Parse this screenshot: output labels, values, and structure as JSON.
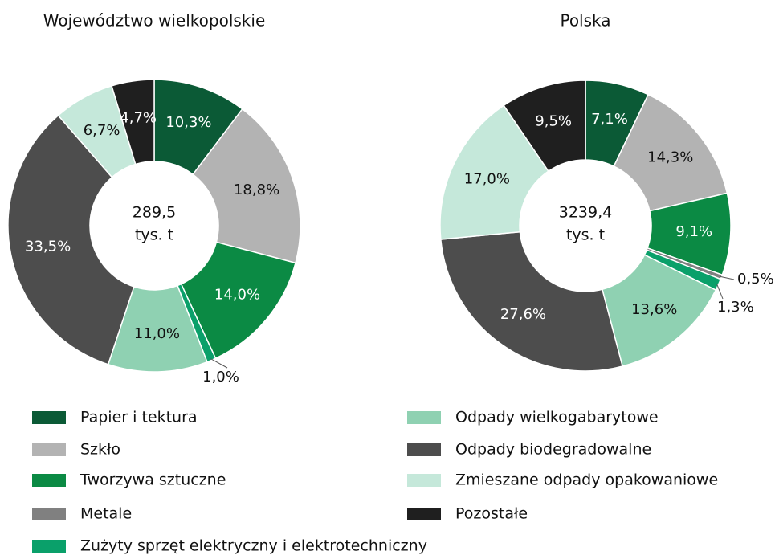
{
  "legend": {
    "categories": [
      "Papier i tektura",
      "Szkło",
      "Tworzywa sztuczne",
      "Metale",
      "Zużyty sprzęt elektryczny i elektrotechniczny",
      "Odpady wielkogabarytowe",
      "Odpady biodegradowalne",
      "Zmieszane odpady opakowaniowe",
      "Pozostałe"
    ],
    "colors": [
      "#0b5a36",
      "#b3b3b3",
      "#0b8a44",
      "#808080",
      "#0aa06a",
      "#8fd1b2",
      "#4d4d4d",
      "#c5e8da",
      "#1f1f1f"
    ]
  },
  "chart_data": [
    {
      "type": "pie",
      "title": "Województwo wielkopolskie",
      "center_value": "289,5",
      "center_unit": "tys. t",
      "values": [
        10.3,
        18.8,
        14.0,
        null,
        1.0,
        11.0,
        33.5,
        6.7,
        4.7
      ],
      "value_labels": [
        "10,3%",
        "18,8%",
        "14,0%",
        null,
        "1,0%",
        "11,0%",
        "33,5%",
        "6,7%",
        "4,7%"
      ]
    },
    {
      "type": "pie",
      "title": "Polska",
      "center_value": "3239,4",
      "center_unit": "tys. t",
      "values": [
        7.1,
        14.3,
        9.1,
        0.5,
        1.3,
        13.6,
        27.6,
        17.0,
        9.5
      ],
      "value_labels": [
        "7,1%",
        "14,3%",
        "9,1%",
        "0,5%",
        "1,3%",
        "13,6%",
        "27,6%",
        "17,0%",
        "9,5%"
      ]
    }
  ]
}
